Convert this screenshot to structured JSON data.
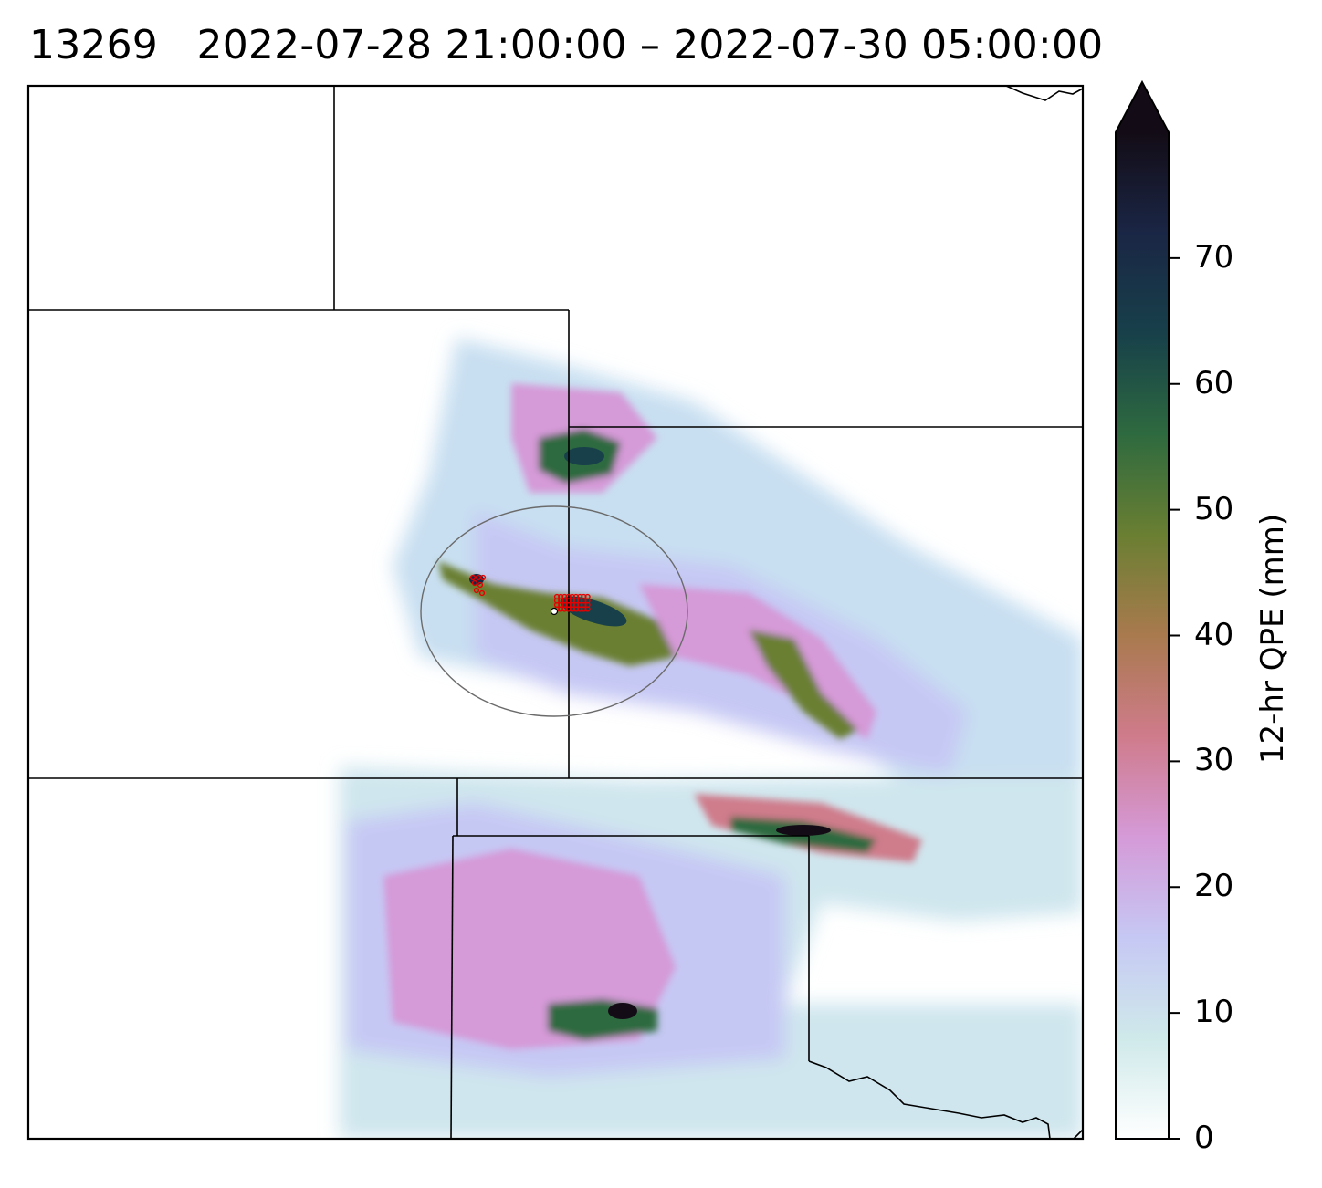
{
  "title": {
    "id": "13269",
    "range": "2022-07-28 21:00:00 – 2022-07-30 05:00:00"
  },
  "colorbar": {
    "label": "12-hr QPE (mm)",
    "ticks": [
      "0",
      "10",
      "20",
      "30",
      "40",
      "50",
      "60",
      "70"
    ],
    "min": 0,
    "max": 80,
    "extend": "max",
    "colormap": "cubehelix-like (white → light blue → lavender → pink → brown → olive green → dark teal → black)",
    "stops": [
      "#ffffff",
      "#cfe9ea",
      "#c6c8f4",
      "#d59ad8",
      "#cf7b8b",
      "#a97a4e",
      "#6a7f32",
      "#2e6a3f",
      "#17404a",
      "#1a2645",
      "#130c16"
    ]
  },
  "map": {
    "grid": false,
    "boundary_color": "#000000",
    "search_radius_color": "#6b6b6b",
    "marker_color": "#e60000",
    "center_marker_color": "#ffffff"
  }
}
